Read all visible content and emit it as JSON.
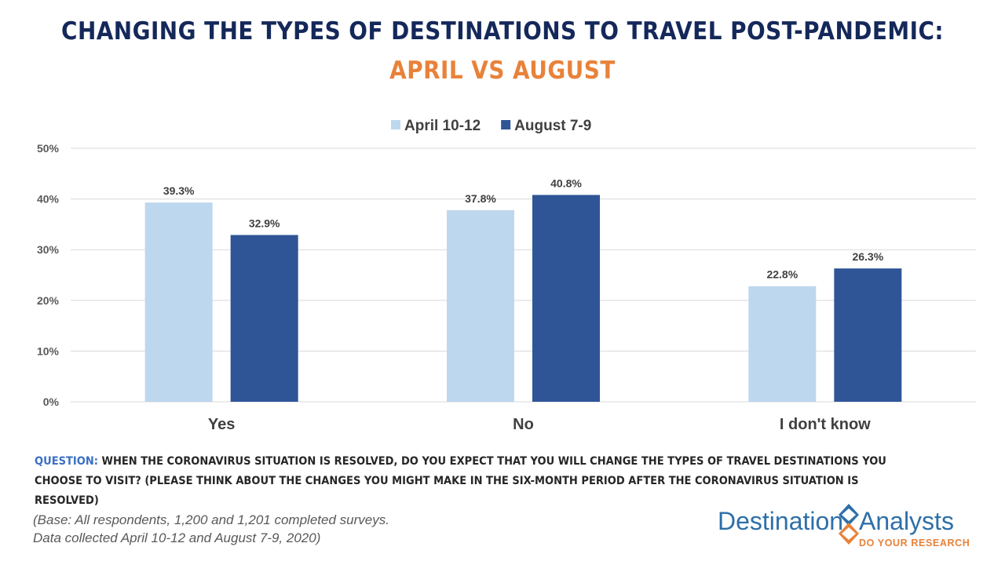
{
  "title_line1": "CHANGING THE TYPES OF DESTINATIONS TO TRAVEL POST-PANDEMIC:",
  "title_line2": "APRIL VS AUGUST",
  "chart_data": {
    "type": "bar",
    "categories": [
      "Yes",
      "No",
      "I don't know"
    ],
    "series": [
      {
        "name": "April 10-12",
        "values": [
          39.3,
          37.8,
          22.8
        ],
        "color": "#bdd7ee"
      },
      {
        "name": "August 7-9",
        "values": [
          32.9,
          40.8,
          26.3
        ],
        "color": "#2f5597"
      }
    ],
    "data_labels": [
      [
        "39.3%",
        "37.8%",
        "22.8%"
      ],
      [
        "32.9%",
        "40.8%",
        "26.3%"
      ]
    ],
    "yticks": [
      "0%",
      "10%",
      "20%",
      "30%",
      "40%",
      "50%"
    ],
    "ylim": [
      0,
      50
    ],
    "grid": true,
    "legend_position": "top"
  },
  "question": {
    "label": "QUESTION:",
    "text": " WHEN THE CORONAVIRUS SITUATION IS RESOLVED, DO YOU EXPECT THAT YOU WILL CHANGE THE TYPES OF TRAVEL DESTINATIONS YOU CHOOSE TO VISIT? (PLEASE THINK ABOUT THE CHANGES YOU MIGHT MAKE IN THE SIX-MONTH PERIOD AFTER THE CORONAVIRUS SITUATION IS RESOLVED)"
  },
  "base": {
    "line1": "(Base: All respondents, 1,200 and 1,201 completed surveys.",
    "line2": "Data collected  April 10-12 and August 7-9, 2020)"
  },
  "logo": {
    "word1": "Destination",
    "word2": "Analysts",
    "tagline": "DO YOUR RESEARCH",
    "colors": {
      "blue": "#2e6fa8",
      "orange": "#e8823a"
    }
  }
}
